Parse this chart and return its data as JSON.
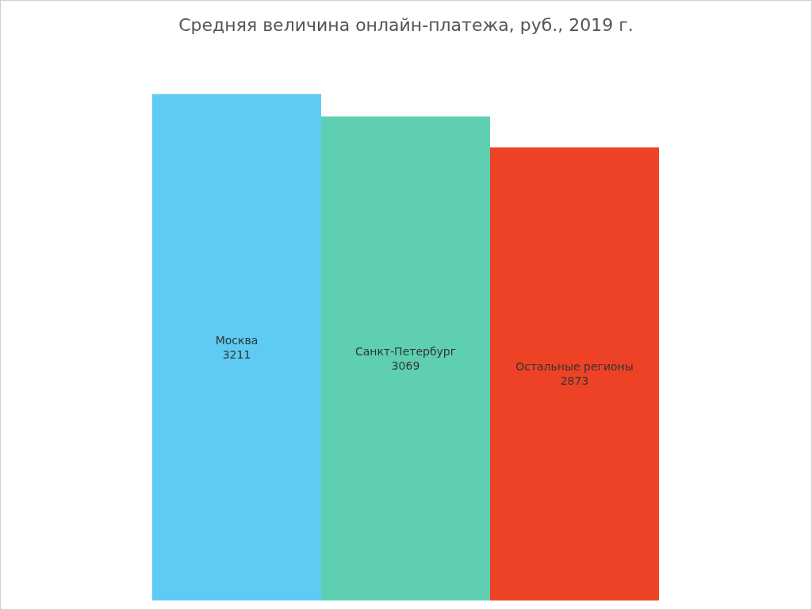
{
  "chart_data": {
    "type": "bar",
    "title": "Средняя величина онлайн-платежа, руб., 2019 г.",
    "categories": [
      "Москва",
      "Санкт-Петербург",
      "Остальные регионы"
    ],
    "values": [
      3211,
      3069,
      2873
    ],
    "colors": [
      "#5ecbf3",
      "#5ecfb0",
      "#ee4226"
    ],
    "data_labels": true
  }
}
